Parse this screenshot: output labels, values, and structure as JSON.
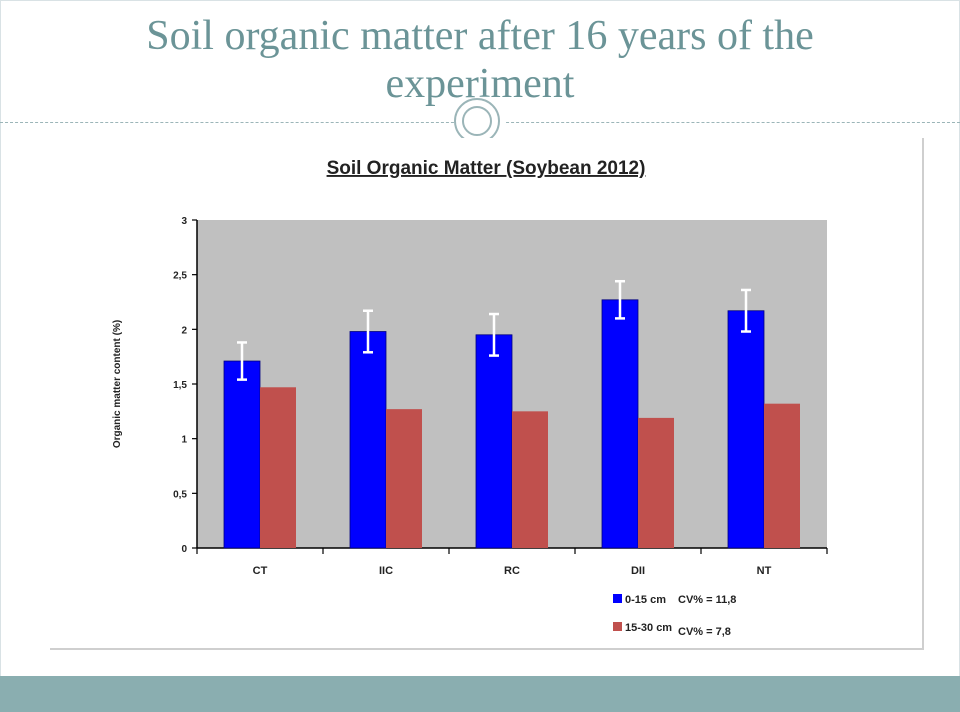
{
  "slide": {
    "title": "Soil organic matter after 16 years of the experiment"
  },
  "colors": {
    "title": "#6b9497",
    "footer": "#8aaeb0",
    "plot_background": "#c0c0c0",
    "series_0_15": "#0000ff",
    "series_15_30": "#c0504d"
  },
  "chart_data": {
    "type": "bar",
    "title": "Soil Organic Matter (Soybean 2012)",
    "ylabel": "Organic matter content (%)",
    "xlabel": "",
    "categories": [
      "CT",
      "IIC",
      "RC",
      "DII",
      "NT"
    ],
    "ylim": [
      0,
      3
    ],
    "yticks": [
      "0",
      "0,5",
      "1",
      "1,5",
      "2",
      "2,5",
      "3"
    ],
    "grid": false,
    "legend_position": "bottom-right",
    "series": [
      {
        "name": "0-15 cm",
        "cv_label": "CV% = 11,8",
        "values": [
          1.71,
          1.98,
          1.95,
          2.27,
          2.17
        ],
        "error": [
          0.17,
          0.19,
          0.19,
          0.17,
          0.19
        ]
      },
      {
        "name": "15-30 cm",
        "cv_label": "CV% = 7,8",
        "values": [
          1.47,
          1.27,
          1.25,
          1.19,
          1.32
        ]
      }
    ]
  }
}
